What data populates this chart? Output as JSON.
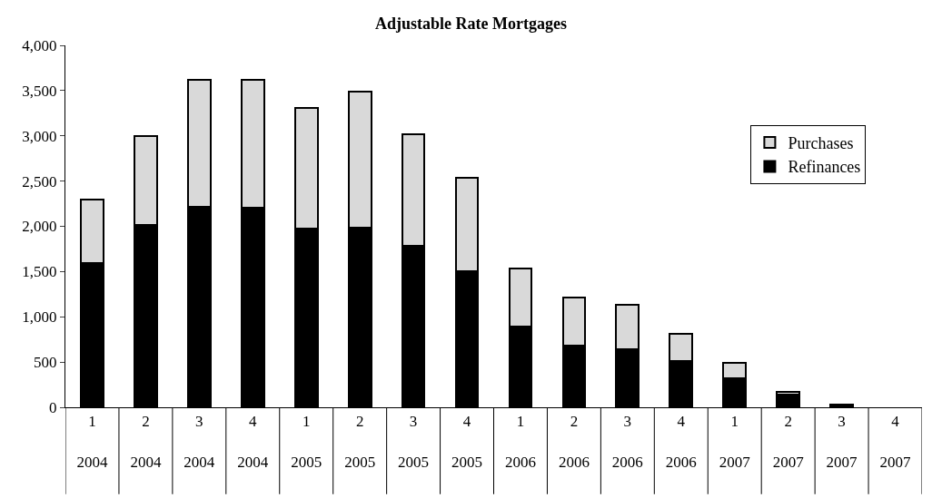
{
  "chart_data": {
    "type": "bar",
    "title": "Adjustable Rate Mortgages",
    "stacked": true,
    "categories": [
      "1\n2004",
      "2\n2004",
      "3\n2004",
      "4\n2004",
      "1\n2005",
      "2\n2005",
      "3\n2005",
      "4\n2005",
      "1\n2006",
      "2\n2006",
      "3\n2006",
      "4\n2006",
      "1\n2007",
      "2\n2007",
      "3\n2007",
      "4\n2007"
    ],
    "series": [
      {
        "name": "Refinances",
        "color": "#000000",
        "values": [
          1590,
          2020,
          2220,
          2210,
          1970,
          1990,
          1780,
          1500,
          890,
          680,
          640,
          510,
          320,
          140,
          30,
          0
        ]
      },
      {
        "name": "Purchases",
        "color": "#d9d9d9",
        "values": [
          710,
          980,
          1400,
          1410,
          1340,
          1500,
          1240,
          1040,
          640,
          530,
          490,
          300,
          170,
          30,
          0,
          0
        ]
      }
    ],
    "ylim": [
      0,
      4000
    ],
    "yticks": [
      {
        "value": 0,
        "label": "0"
      },
      {
        "value": 500,
        "label": "500"
      },
      {
        "value": 1000,
        "label": "1,000"
      },
      {
        "value": 1500,
        "label": "1,500"
      },
      {
        "value": 2000,
        "label": "2,000"
      },
      {
        "value": 2500,
        "label": "2,500"
      },
      {
        "value": 3000,
        "label": "3,000"
      },
      {
        "value": 3500,
        "label": "3,500"
      },
      {
        "value": 4000,
        "label": "4,000"
      }
    ],
    "grid": false,
    "legend": "top right"
  }
}
